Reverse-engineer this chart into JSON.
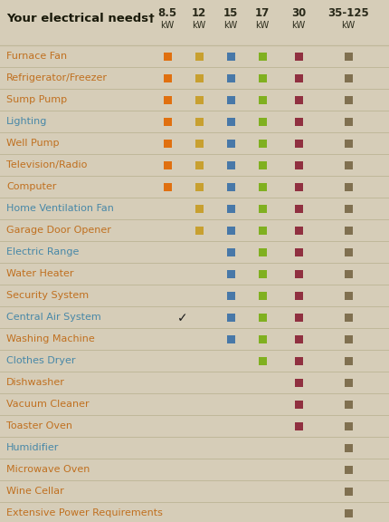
{
  "bg_color": "#d6cdb8",
  "title_line1": "Your electrical needs",
  "title_sup": "†",
  "col_headers": [
    "8.5",
    "12",
    "15",
    "17",
    "30",
    "35-125"
  ],
  "col_sub": [
    "kW",
    "kW",
    "kW",
    "kW",
    "kW",
    "kW"
  ],
  "col_colors": [
    "#e07010",
    "#c8a030",
    "#4878a8",
    "#80b020",
    "#903040",
    "#807050"
  ],
  "rows": [
    {
      "label": "Furnace Fan",
      "lcolor": "#c07020",
      "cols": [
        1,
        1,
        1,
        1,
        1,
        1
      ],
      "checkmark": 0
    },
    {
      "label": "Refrigerator/Freezer",
      "lcolor": "#c07020",
      "cols": [
        1,
        1,
        1,
        1,
        1,
        1
      ],
      "checkmark": 0
    },
    {
      "label": "Sump Pump",
      "lcolor": "#c07020",
      "cols": [
        1,
        1,
        1,
        1,
        1,
        1
      ],
      "checkmark": 0
    },
    {
      "label": "Lighting",
      "lcolor": "#4888a8",
      "cols": [
        1,
        1,
        1,
        1,
        1,
        1
      ],
      "checkmark": 0
    },
    {
      "label": "Well Pump",
      "lcolor": "#c07020",
      "cols": [
        1,
        1,
        1,
        1,
        1,
        1
      ],
      "checkmark": 0
    },
    {
      "label": "Television/Radio",
      "lcolor": "#c07020",
      "cols": [
        1,
        1,
        1,
        1,
        1,
        1
      ],
      "checkmark": 0
    },
    {
      "label": "Computer",
      "lcolor": "#c07020",
      "cols": [
        1,
        1,
        1,
        1,
        1,
        1
      ],
      "checkmark": 0
    },
    {
      "label": "Home Ventilation Fan",
      "lcolor": "#4888a8",
      "cols": [
        0,
        1,
        1,
        1,
        1,
        1
      ],
      "checkmark": 0
    },
    {
      "label": "Garage Door Opener",
      "lcolor": "#c07020",
      "cols": [
        0,
        1,
        1,
        1,
        1,
        1
      ],
      "checkmark": 0
    },
    {
      "label": "Electric Range",
      "lcolor": "#4888a8",
      "cols": [
        0,
        0,
        1,
        1,
        1,
        1
      ],
      "checkmark": 0
    },
    {
      "label": "Water Heater",
      "lcolor": "#c07020",
      "cols": [
        0,
        0,
        1,
        1,
        1,
        1
      ],
      "checkmark": 0
    },
    {
      "label": "Security System",
      "lcolor": "#c07020",
      "cols": [
        0,
        0,
        1,
        1,
        1,
        1
      ],
      "checkmark": 0
    },
    {
      "label": "Central Air System",
      "lcolor": "#4888a8",
      "cols": [
        0,
        0,
        1,
        1,
        1,
        1
      ],
      "checkmark": 1
    },
    {
      "label": "Washing Machine",
      "lcolor": "#c07020",
      "cols": [
        0,
        0,
        1,
        1,
        1,
        1
      ],
      "checkmark": 0
    },
    {
      "label": "Clothes Dryer",
      "lcolor": "#4888a8",
      "cols": [
        0,
        0,
        0,
        1,
        1,
        1
      ],
      "checkmark": 0
    },
    {
      "label": "Dishwasher",
      "lcolor": "#c07020",
      "cols": [
        0,
        0,
        0,
        0,
        1,
        1
      ],
      "checkmark": 0
    },
    {
      "label": "Vacuum Cleaner",
      "lcolor": "#c07020",
      "cols": [
        0,
        0,
        0,
        0,
        1,
        1
      ],
      "checkmark": 0
    },
    {
      "label": "Toaster Oven",
      "lcolor": "#c07020",
      "cols": [
        0,
        0,
        0,
        0,
        1,
        1
      ],
      "checkmark": 0
    },
    {
      "label": "Humidifier",
      "lcolor": "#4888a8",
      "cols": [
        0,
        0,
        0,
        0,
        0,
        1
      ],
      "checkmark": 0
    },
    {
      "label": "Microwave Oven",
      "lcolor": "#c07020",
      "cols": [
        0,
        0,
        0,
        0,
        0,
        1
      ],
      "checkmark": 0
    },
    {
      "label": "Wine Cellar",
      "lcolor": "#c07020",
      "cols": [
        0,
        0,
        0,
        0,
        0,
        1
      ],
      "checkmark": 0
    },
    {
      "label": "Extensive Power Requirements",
      "lcolor": "#c07020",
      "cols": [
        0,
        0,
        0,
        0,
        0,
        1
      ],
      "checkmark": 0
    }
  ],
  "separator_color": "#c0b89a",
  "title_color": "#1a1a0a",
  "header_num_color": "#2a2a1a",
  "header_sub_color": "#2a2a1a"
}
